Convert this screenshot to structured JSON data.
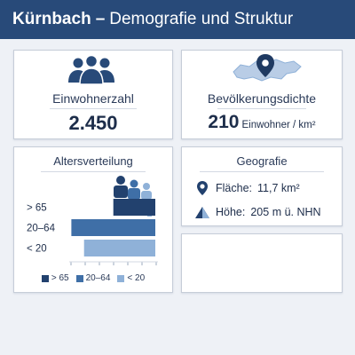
{
  "header": {
    "title_bold": "Kürnbach",
    "separator": "–",
    "title_rest": "Demografie und Struktur"
  },
  "population": {
    "label": "Einwohnerzahl",
    "value": "2.450",
    "icon": "people-icon"
  },
  "density": {
    "label": "Bevölkerungsdichte",
    "value": "210",
    "unit": "Einwohner / km²",
    "icon": "map-pin-icon"
  },
  "age": {
    "title": "Altersverteilung",
    "icon": "family-icon",
    "chart_data": {
      "type": "bar",
      "categories": [
        "> 65",
        "20–64",
        "< 20"
      ],
      "values": [
        0.43,
        0.86,
        0.73
      ]
    },
    "legend": [
      "> 65",
      "20–64",
      "< 20"
    ]
  },
  "geography": {
    "title": "Geografie",
    "area_label": "Fläche:",
    "area_value": "11,7 km²",
    "height_label": "Höhe:",
    "height_value": "205 m ü. NHN"
  },
  "colors": {
    "header": "#284a79",
    "over65": "#22416e",
    "working": "#3f6fa7",
    "under20": "#8fb1d8"
  }
}
